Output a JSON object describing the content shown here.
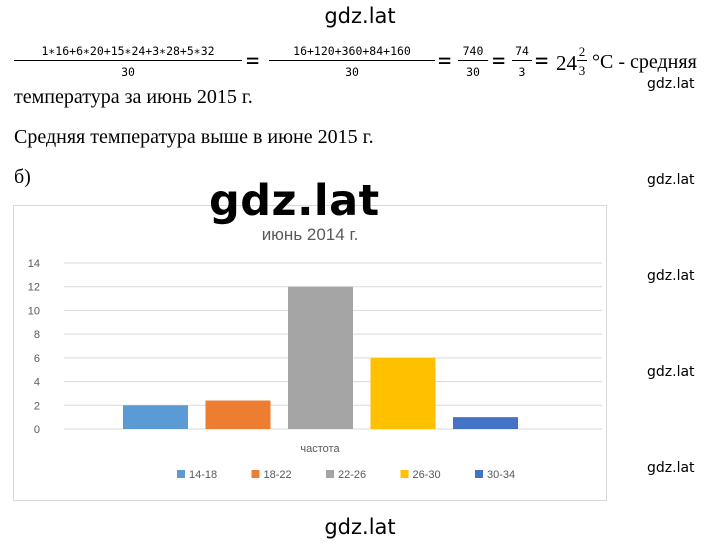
{
  "watermarks": {
    "top": "gdz.lat",
    "bottom": "gdz.lat",
    "big": "gdz.lat",
    "side": [
      "gdz.lat",
      "gdz.lat",
      "gdz.lat",
      "gdz.lat",
      "gdz.lat"
    ]
  },
  "formula": {
    "frac1_num": "1∗16+6∗20+15∗24+3∗28+5∗32",
    "frac1_den": "30",
    "eq1": "=",
    "frac2_num": "16+120+360+84+160",
    "frac2_den": "30",
    "eq2": "=",
    "frac3_num": "740",
    "frac3_den": "30",
    "eq3": "=",
    "frac4_num": "74",
    "frac4_den": "3",
    "eq4": "=",
    "mixed_whole": "24",
    "mixed_num": "2",
    "mixed_den": "3",
    "suffix": "°C - средняя"
  },
  "text": {
    "line2": "температура за июнь 2015 г.",
    "line3": "Средняя температура выше в июне 2015 г.",
    "label_b": "б)"
  },
  "chart_data": {
    "type": "bar",
    "title": "июнь 2014 г.",
    "xlabel": "частота",
    "ylabel": "",
    "ylim": [
      0,
      14
    ],
    "yticks": [
      0,
      2,
      4,
      6,
      8,
      10,
      12,
      14
    ],
    "grid": true,
    "legend_position": "bottom",
    "categories": [
      "частота"
    ],
    "series": [
      {
        "name": "14-18",
        "values": [
          2
        ],
        "color": "#5b9bd5"
      },
      {
        "name": "18-22",
        "values": [
          2.4
        ],
        "color": "#ed7d31"
      },
      {
        "name": "22-26",
        "values": [
          12
        ],
        "color": "#a5a5a5"
      },
      {
        "name": "26-30",
        "values": [
          6
        ],
        "color": "#ffc000"
      },
      {
        "name": "30-34",
        "values": [
          1
        ],
        "color": "#4472c4"
      }
    ]
  }
}
